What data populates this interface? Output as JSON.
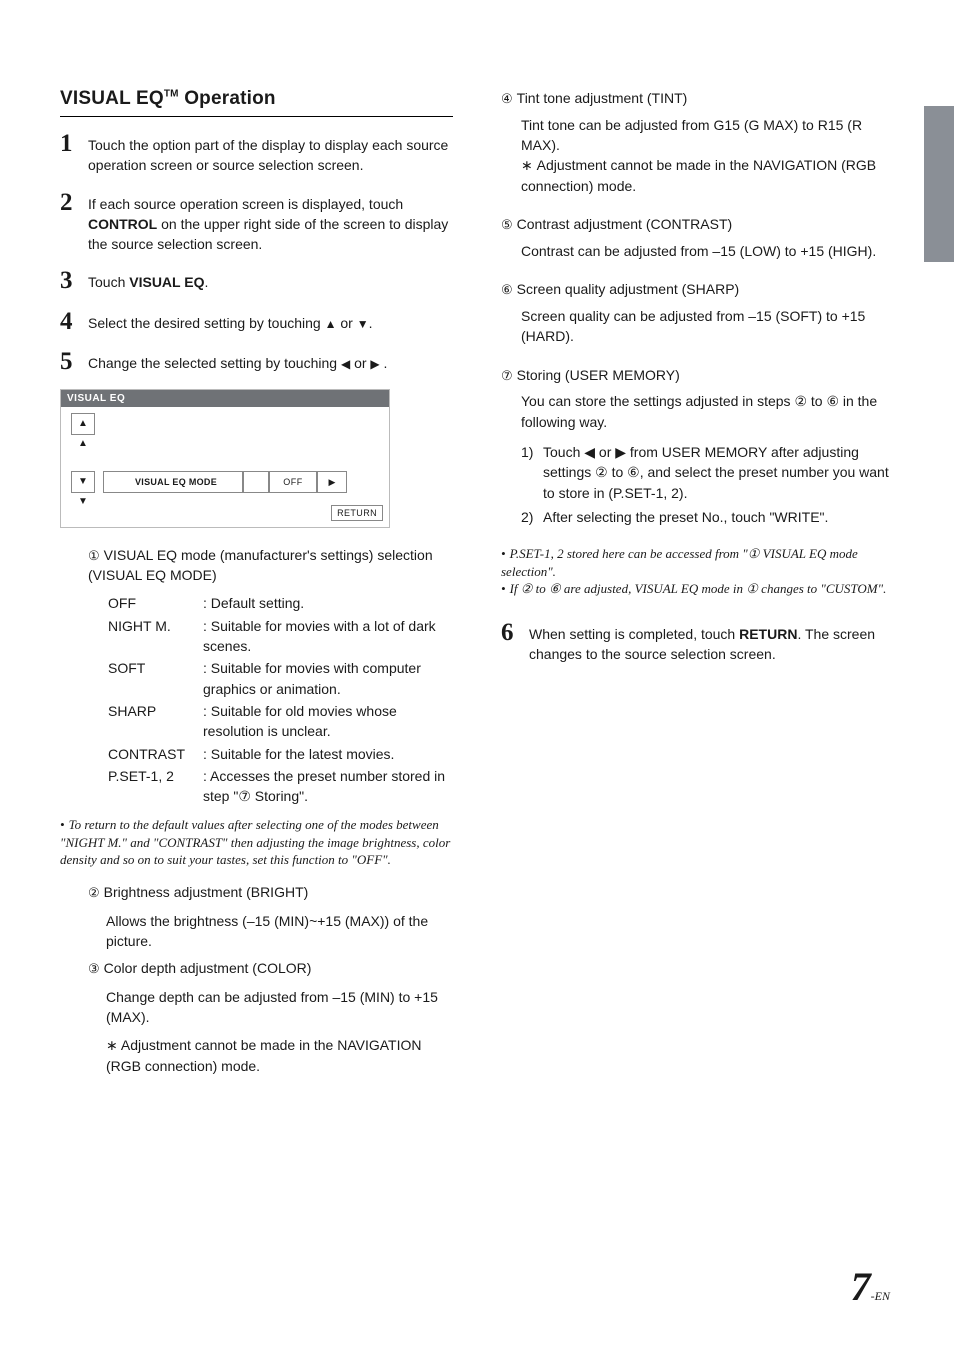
{
  "heading": "VISUAL EQ™ Operation",
  "steps": {
    "s1": "Touch the option part of the display to display each source operation screen or source selection screen.",
    "s2_a": "If each source operation screen is displayed, touch ",
    "s2_b": "CONTROL",
    "s2_c": " on the upper right side of the screen to display the source selection screen.",
    "s3_a": "Touch ",
    "s3_b": "VISUAL EQ",
    "s3_c": ".",
    "s4": "Select the desired setting by touching ",
    "s5": "Change the selected setting by touching ",
    "s6_a": "When setting is completed, touch ",
    "s6_b": "RETURN",
    "s6_c": ". The screen changes to the source selection screen."
  },
  "panel": {
    "title": "VISUAL EQ",
    "mode_label": "VISUAL EQ MODE",
    "mode_value": "OFF",
    "return": "RETURN"
  },
  "item1": {
    "head": "VISUAL EQ mode (manufacturer's settings) selection (VISUAL EQ MODE)",
    "rows": [
      {
        "t": "OFF",
        "d": ": Default setting."
      },
      {
        "t": "NIGHT M.",
        "d": ": Suitable for movies with a lot of dark scenes."
      },
      {
        "t": "SOFT",
        "d": ": Suitable for movies with computer graphics or animation."
      },
      {
        "t": "SHARP",
        "d": ": Suitable for old movies whose resolution is unclear."
      },
      {
        "t": "CONTRAST",
        "d": ": Suitable for the latest movies."
      },
      {
        "t": "P.SET-1, 2",
        "d": ": Accesses the preset number stored in step \"⑦ Storing\"."
      }
    ]
  },
  "note1": "To return to the default values after selecting one of the modes between \"NIGHT M.\" and \"CONTRAST\" then adjusting the image brightness, color density and so on to suit your tastes, set this function to \"OFF\".",
  "item2": {
    "head": "Brightness adjustment (BRIGHT)",
    "body": "Allows the brightness (–15 (MIN)~+15 (MAX)) of the picture."
  },
  "item3": {
    "head": "Color depth adjustment (COLOR)",
    "body": "Change depth can be adjusted from –15 (MIN) to +15 (MAX).",
    "ast": "Adjustment cannot be made in the NAVIGATION (RGB connection) mode."
  },
  "item4": {
    "head": "Tint tone adjustment (TINT)",
    "body": "Tint tone can be adjusted from G15 (G MAX) to R15 (R MAX).",
    "ast": "Adjustment cannot be made in the NAVIGATION (RGB connection) mode."
  },
  "item5": {
    "head": "Contrast adjustment (CONTRAST)",
    "body": "Contrast can be adjusted from –15 (LOW) to +15 (HIGH)."
  },
  "item6": {
    "head": "Screen quality adjustment (SHARP)",
    "body": "Screen quality can be adjusted from –15 (SOFT) to +15 (HARD)."
  },
  "item7": {
    "head": "Storing (USER MEMORY)",
    "body": "You can store the settings adjusted in steps ② to ⑥ in the following way.",
    "sub1": "Touch ◀ or ▶ from USER MEMORY after adjusting settings ② to ⑥, and select the preset number you want to store in (P.SET-1, 2).",
    "sub2": "After selecting the preset No., touch \"WRITE\"."
  },
  "note2a": "P.SET-1, 2 stored here can be accessed from \"① VISUAL EQ mode selection\".",
  "note2b": "If ② to ⑥ are adjusted, VISUAL EQ mode in ① changes to \"CUSTOM\".",
  "page": {
    "num": "7",
    "suf": "-EN"
  }
}
